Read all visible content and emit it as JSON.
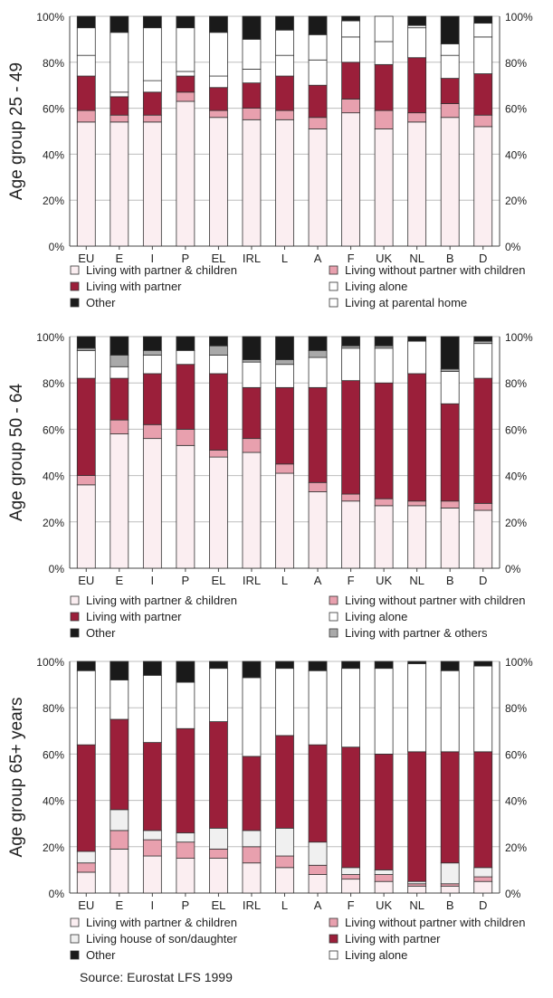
{
  "x_categories": [
    "EU",
    "E",
    "I",
    "P",
    "EL",
    "IRL",
    "L",
    "A",
    "F",
    "UK",
    "NL",
    "B",
    "D"
  ],
  "y_ticks": [
    "0%",
    "20%",
    "40%",
    "60%",
    "80%",
    "100%"
  ],
  "colors": {
    "partner_children": "#fbeef1",
    "with_partner": "#9b1f3a",
    "without_partner_children": "#e8a0ae",
    "alone": "#ffffff",
    "parental_home": "#ffffff",
    "partner_others": "#a9a9a9",
    "house_son_daughter": "#f0f0f0",
    "other": "#1a1a1a"
  },
  "chart_data": [
    {
      "type": "bar",
      "stacked": true,
      "ylabel": "Age group 25 - 49",
      "ylim": [
        0,
        100
      ],
      "categories": [
        "EU",
        "E",
        "I",
        "P",
        "EL",
        "IRL",
        "L",
        "A",
        "F",
        "UK",
        "NL",
        "B",
        "D"
      ],
      "series": [
        {
          "name": "Living with partner & children",
          "color": "partner_children",
          "values": [
            54,
            54,
            54,
            63,
            56,
            55,
            55,
            51,
            58,
            51,
            54,
            56,
            52
          ]
        },
        {
          "name": "Living without partner with children",
          "color": "without_partner_children",
          "values": [
            5,
            3,
            3,
            4,
            3,
            5,
            4,
            5,
            6,
            8,
            4,
            6,
            5
          ]
        },
        {
          "name": "Living with partner",
          "color": "with_partner",
          "values": [
            15,
            8,
            10,
            7,
            10,
            11,
            15,
            14,
            16,
            20,
            24,
            11,
            18
          ]
        },
        {
          "name": "Living at parental home",
          "color": "parental_home",
          "values": [
            9,
            2,
            5,
            2,
            5,
            6,
            9,
            11,
            11,
            10,
            13,
            10,
            16
          ]
        },
        {
          "name": "Living alone",
          "color": "alone",
          "values": [
            12,
            26,
            23,
            19,
            19,
            13,
            11,
            11,
            7,
            11,
            1,
            5,
            6
          ]
        },
        {
          "name": "Other",
          "color": "other",
          "values": [
            5,
            7,
            5,
            5,
            7,
            10,
            6,
            8,
            2,
            0,
            4,
            12,
            3
          ]
        }
      ],
      "legend": [
        {
          "label": "Living with partner & children",
          "color": "partner_children"
        },
        {
          "label": "Living without partner with children",
          "color": "without_partner_children"
        },
        {
          "label": "Living with partner",
          "color": "with_partner"
        },
        {
          "label": "Living alone",
          "color": "alone"
        },
        {
          "label": "Other",
          "color": "other"
        },
        {
          "label": "Living at parental home",
          "color": "parental_home"
        }
      ]
    },
    {
      "type": "bar",
      "stacked": true,
      "ylabel": "Age group 50 - 64",
      "ylim": [
        0,
        100
      ],
      "categories": [
        "EU",
        "E",
        "I",
        "P",
        "EL",
        "IRL",
        "L",
        "A",
        "F",
        "UK",
        "NL",
        "B",
        "D"
      ],
      "series": [
        {
          "name": "Living with partner & children",
          "color": "partner_children",
          "values": [
            36,
            58,
            56,
            53,
            48,
            50,
            41,
            33,
            29,
            27,
            27,
            26,
            25
          ]
        },
        {
          "name": "Living without partner with children",
          "color": "without_partner_children",
          "values": [
            4,
            6,
            6,
            7,
            3,
            6,
            4,
            4,
            3,
            3,
            2,
            3,
            3
          ]
        },
        {
          "name": "Living with partner",
          "color": "with_partner",
          "values": [
            42,
            18,
            22,
            28,
            33,
            22,
            33,
            41,
            49,
            50,
            55,
            42,
            54
          ]
        },
        {
          "name": "Living alone",
          "color": "alone",
          "values": [
            12,
            5,
            8,
            6,
            8,
            11,
            10,
            13,
            14,
            15,
            14,
            14,
            15
          ]
        },
        {
          "name": "Living with partner & others",
          "color": "partner_others",
          "values": [
            1,
            5,
            2,
            0,
            4,
            1,
            2,
            3,
            1,
            1,
            0,
            1,
            1
          ]
        },
        {
          "name": "Other",
          "color": "other",
          "values": [
            5,
            8,
            6,
            6,
            4,
            10,
            10,
            6,
            4,
            4,
            2,
            14,
            2
          ]
        }
      ],
      "legend": [
        {
          "label": "Living with partner & children",
          "color": "partner_children"
        },
        {
          "label": "Living without partner with children",
          "color": "without_partner_children"
        },
        {
          "label": "Living with partner",
          "color": "with_partner"
        },
        {
          "label": "Living alone",
          "color": "alone"
        },
        {
          "label": "Other",
          "color": "other"
        },
        {
          "label": "Living with partner & others",
          "color": "partner_others"
        }
      ]
    },
    {
      "type": "bar",
      "stacked": true,
      "ylabel": "Age group 65+ years",
      "ylim": [
        0,
        100
      ],
      "categories": [
        "EU",
        "E",
        "I",
        "P",
        "EL",
        "IRL",
        "L",
        "A",
        "F",
        "UK",
        "NL",
        "B",
        "D"
      ],
      "series": [
        {
          "name": "Living with partner & children",
          "color": "partner_children",
          "values": [
            9,
            19,
            16,
            15,
            15,
            13,
            11,
            8,
            6,
            5,
            3,
            3,
            5
          ]
        },
        {
          "name": "Living without partner with children",
          "color": "without_partner_children",
          "values": [
            4,
            8,
            7,
            7,
            4,
            7,
            5,
            4,
            2,
            3,
            1,
            1,
            2
          ]
        },
        {
          "name": "Living house of son/daughter",
          "color": "house_son_daughter",
          "values": [
            5,
            9,
            4,
            4,
            9,
            7,
            12,
            10,
            3,
            2,
            1,
            9,
            4
          ]
        },
        {
          "name": "Living with partner",
          "color": "with_partner",
          "values": [
            46,
            39,
            38,
            45,
            46,
            32,
            40,
            42,
            52,
            50,
            56,
            48,
            50
          ]
        },
        {
          "name": "Living alone",
          "color": "alone",
          "values": [
            32,
            17,
            29,
            20,
            23,
            34,
            29,
            32,
            34,
            37,
            38,
            35,
            37
          ]
        },
        {
          "name": "Other",
          "color": "other",
          "values": [
            4,
            8,
            6,
            9,
            3,
            7,
            3,
            4,
            3,
            3,
            1,
            4,
            2
          ]
        }
      ],
      "legend": [
        {
          "label": "Living with partner & children",
          "color": "partner_children"
        },
        {
          "label": "Living without partner with children",
          "color": "without_partner_children"
        },
        {
          "label": "Living house of son/daughter",
          "color": "house_son_daughter"
        },
        {
          "label": "Living with partner",
          "color": "with_partner"
        },
        {
          "label": "Other",
          "color": "other"
        },
        {
          "label": "Living alone",
          "color": "alone"
        }
      ]
    }
  ],
  "source": "Source: Eurostat LFS 1999"
}
